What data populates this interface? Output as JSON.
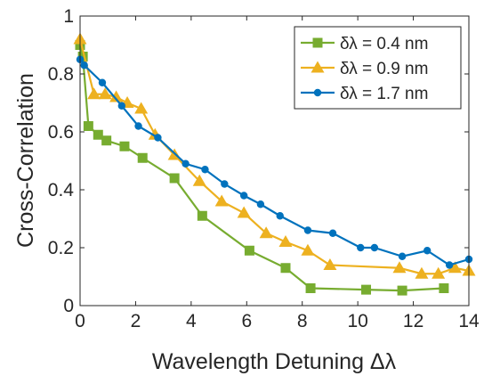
{
  "chart_data": {
    "type": "line",
    "xlabel": "Wavelength Detuning Δλ",
    "ylabel": "Cross-Correlation",
    "xlim": [
      0,
      14
    ],
    "ylim": [
      0,
      1
    ],
    "x_ticks": [
      "0",
      "2",
      "4",
      "6",
      "8",
      "10",
      "12",
      "14"
    ],
    "y_ticks": [
      "0",
      "0.2",
      "0.4",
      "0.6",
      "0.8",
      "1"
    ],
    "grid": false,
    "legend_position": "top-right",
    "series": [
      {
        "name": "δλ = 0.4 nm",
        "color": "#77ac30",
        "marker": "square",
        "x": [
          0.0,
          0.1,
          0.3,
          0.65,
          0.95,
          1.6,
          2.25,
          3.4,
          4.4,
          6.1,
          7.4,
          8.3,
          10.3,
          11.6,
          13.1
        ],
        "y": [
          0.9,
          0.86,
          0.62,
          0.59,
          0.57,
          0.55,
          0.51,
          0.44,
          0.31,
          0.19,
          0.13,
          0.06,
          0.055,
          0.052,
          0.06
        ]
      },
      {
        "name": "δλ = 0.9 nm",
        "color": "#edb120",
        "marker": "triangle",
        "x": [
          0.0,
          0.5,
          0.9,
          1.3,
          1.7,
          2.2,
          2.7,
          3.4,
          4.3,
          5.1,
          5.9,
          6.7,
          7.4,
          8.2,
          9.0,
          11.5,
          12.3,
          12.9,
          13.5,
          14.0
        ],
        "y": [
          0.92,
          0.73,
          0.73,
          0.72,
          0.7,
          0.68,
          0.59,
          0.52,
          0.43,
          0.36,
          0.32,
          0.25,
          0.22,
          0.19,
          0.14,
          0.13,
          0.11,
          0.11,
          0.13,
          0.12
        ]
      },
      {
        "name": "δλ = 1.7 nm",
        "color": "#0072bd",
        "marker": "circle",
        "x": [
          0.0,
          0.15,
          0.8,
          1.5,
          2.1,
          2.8,
          3.8,
          4.5,
          5.2,
          5.9,
          6.5,
          7.2,
          8.2,
          9.1,
          10.1,
          10.6,
          11.6,
          12.5,
          13.3,
          14.0
        ],
        "y": [
          0.85,
          0.83,
          0.77,
          0.69,
          0.62,
          0.58,
          0.49,
          0.47,
          0.42,
          0.38,
          0.35,
          0.31,
          0.26,
          0.25,
          0.2,
          0.2,
          0.17,
          0.19,
          0.14,
          0.16
        ]
      }
    ]
  }
}
